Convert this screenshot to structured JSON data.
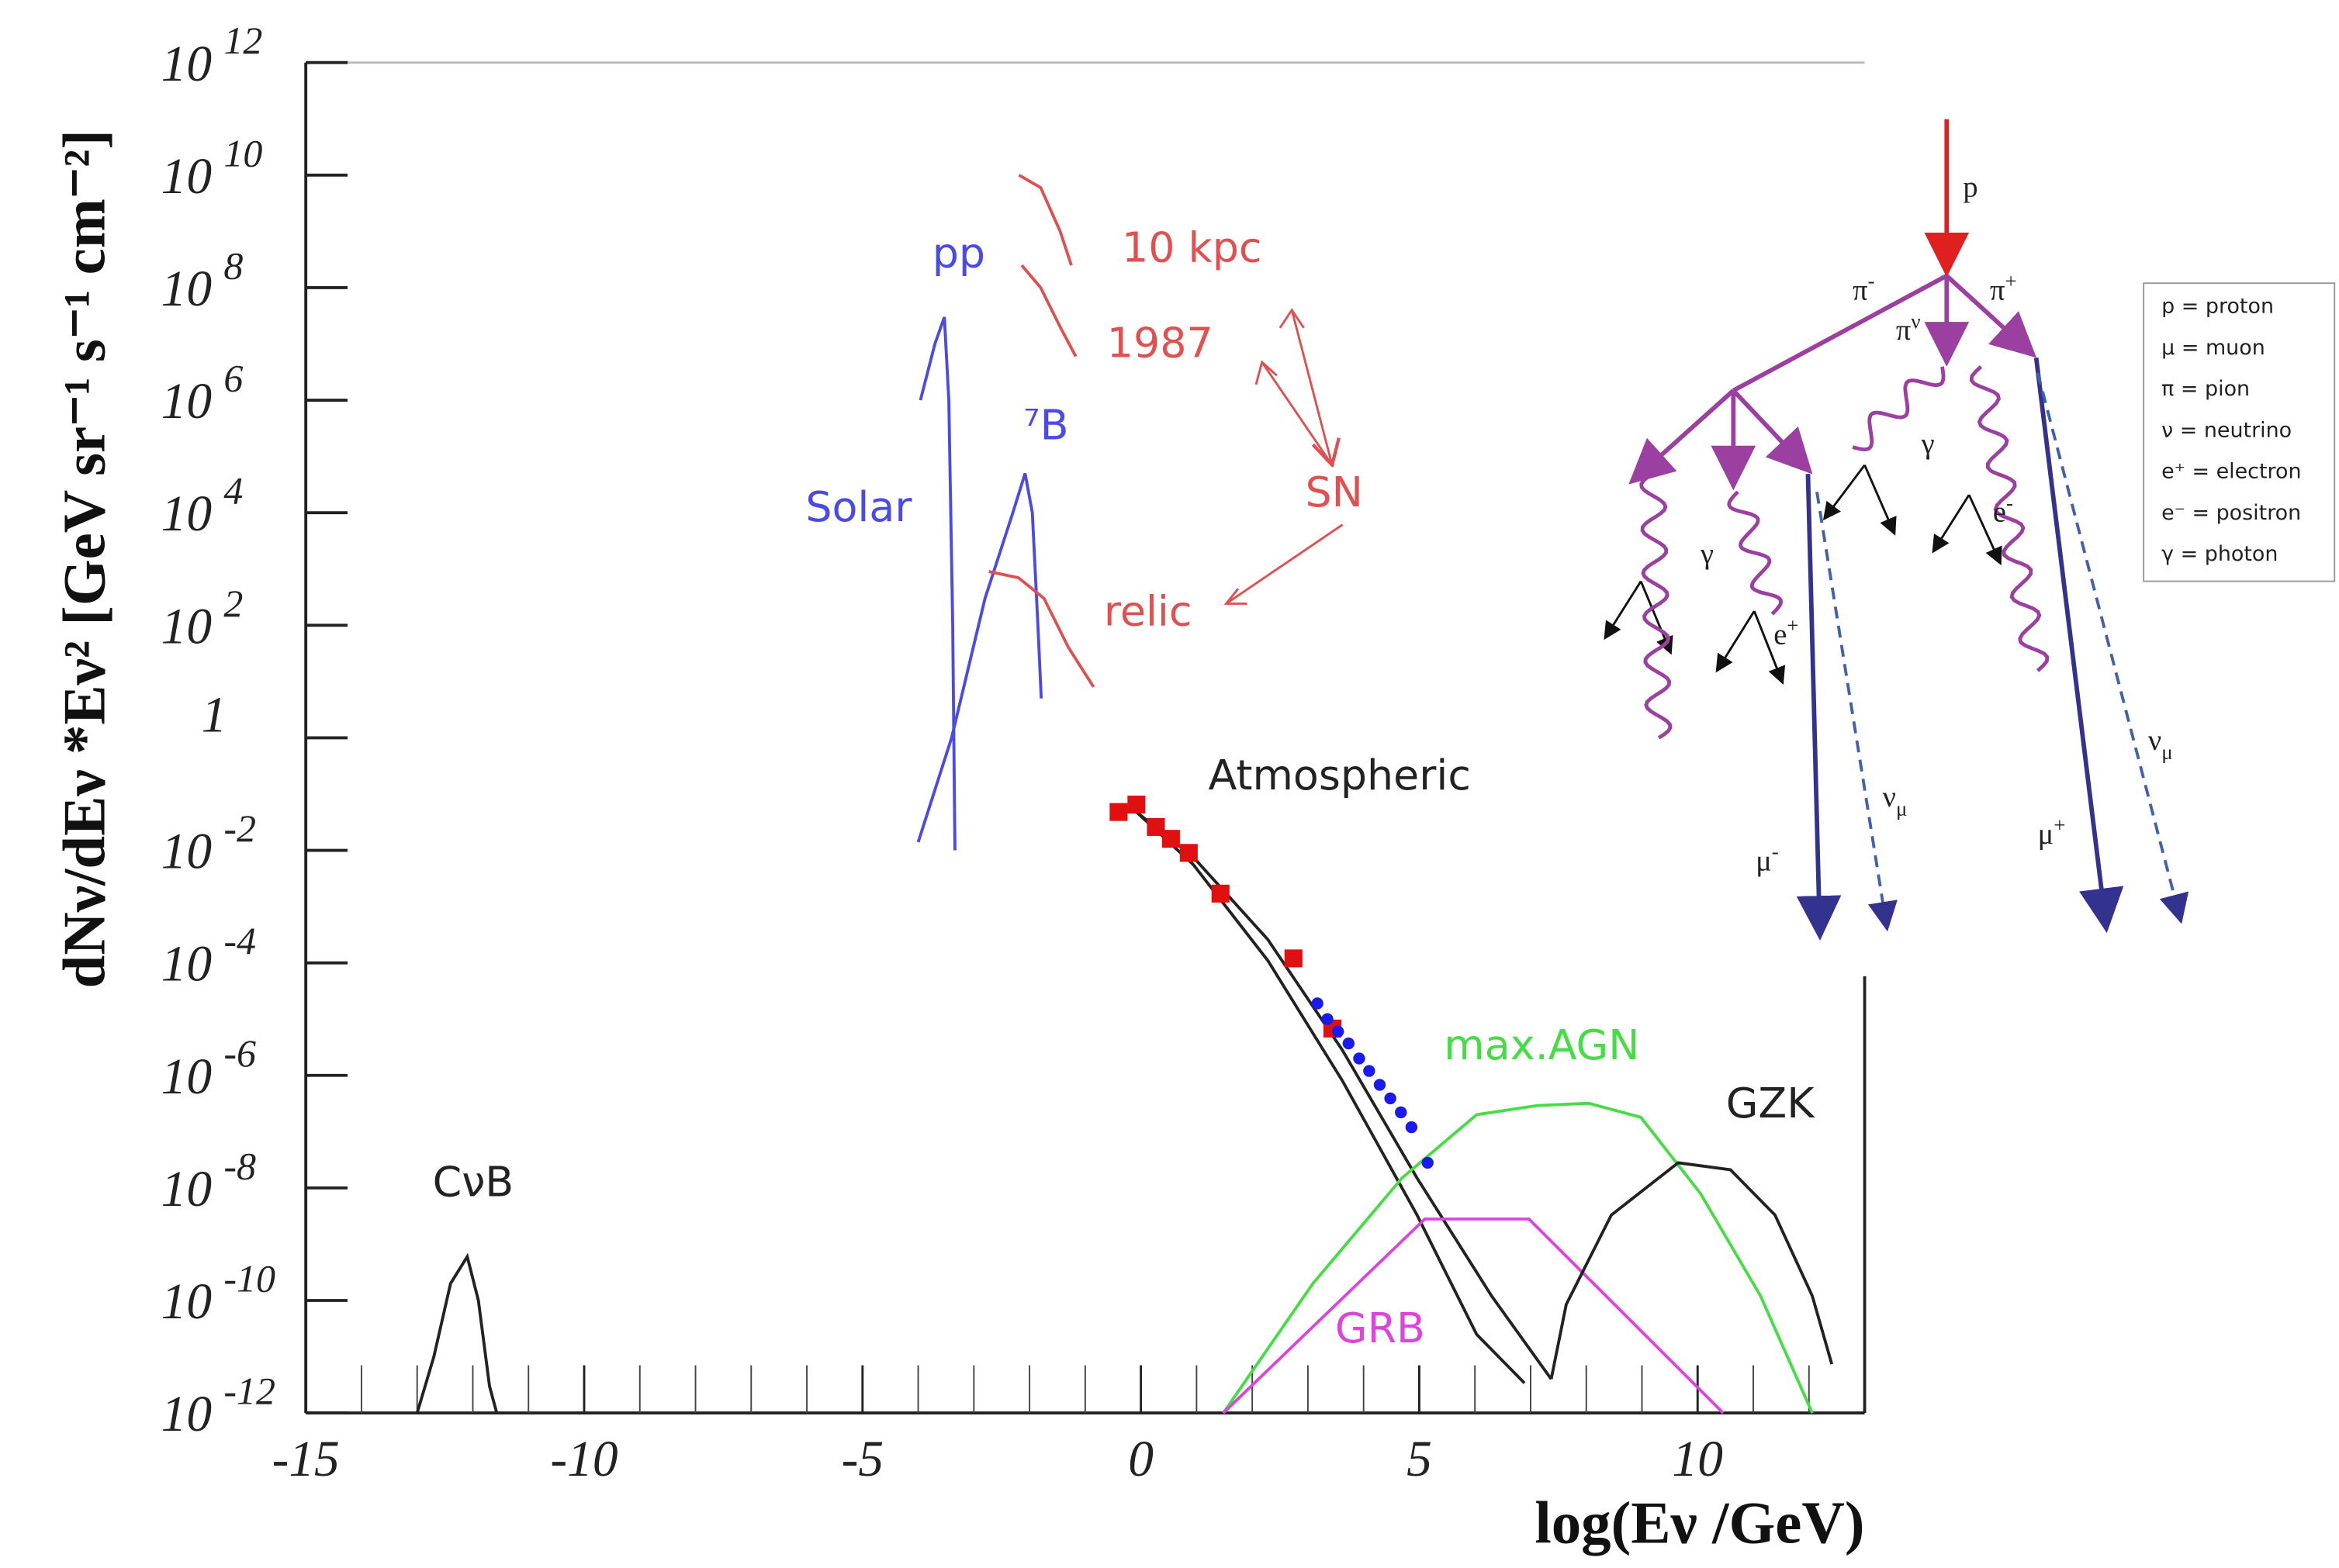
{
  "chart_data": {
    "type": "line",
    "xlabel": "log(Eν /GeV)",
    "ylabel": "dNν/dEν *Eν² [GeV sr⁻¹ s⁻¹ cm⁻²]",
    "xlim": [
      -15,
      13
    ],
    "ylim": [
      1e-12,
      1000000000000.0
    ],
    "log_y": true,
    "xticks": [
      -15,
      -10,
      -5,
      0,
      5,
      10
    ],
    "xticks_minor": [
      -14,
      -13,
      -12,
      -11,
      -9,
      -8,
      -7,
      -6,
      -4,
      -3,
      -2,
      -1,
      1,
      2,
      3,
      4,
      6,
      7,
      8,
      9,
      11,
      12
    ],
    "yticks": [
      {
        "value": 1e-12,
        "label": "10",
        "sup": "-12"
      },
      {
        "value": 1e-10,
        "label": "10",
        "sup": "-10"
      },
      {
        "value": 1e-08,
        "label": "10",
        "sup": "-8"
      },
      {
        "value": 1e-06,
        "label": "10",
        "sup": "-6"
      },
      {
        "value": 0.0001,
        "label": "10",
        "sup": "-4"
      },
      {
        "value": 0.01,
        "label": "10",
        "sup": "-2"
      },
      1,
      {
        "value": 100.0,
        "label": "10",
        "sup": "2"
      },
      {
        "value": 10000.0,
        "label": "10",
        "sup": "4"
      },
      {
        "value": 1000000.0,
        "label": "10",
        "sup": "6"
      },
      {
        "value": 100000000.0,
        "label": "10",
        "sup": "8"
      },
      {
        "value": 10000000000.0,
        "label": "10",
        "sup": "10"
      },
      {
        "value": 1000000000000.0,
        "label": "10",
        "sup": "12"
      }
    ],
    "series": [
      {
        "name": "CνB",
        "color": "#222222",
        "x": [
          -13.0,
          -12.7,
          -12.4,
          -12.1,
          -11.9,
          -11.7,
          -11.57
        ],
        "values": [
          1e-12,
          1e-11,
          2e-10,
          6e-10,
          1e-10,
          3e-12,
          1e-12
        ]
      },
      {
        "name": "pp",
        "color": "#4a4ae8",
        "x": [
          -3.96,
          -3.7,
          -3.53,
          -3.45,
          -3.38,
          -3.34
        ],
        "values": [
          1000000.0,
          10000000.0,
          30000000.0,
          1000000.0,
          100.0,
          0.01
        ]
      },
      {
        "name": "⁷B",
        "color": "#4a4ae8",
        "x": [
          -4.0,
          -3.4,
          -2.8,
          -2.3,
          -2.08,
          -1.95,
          -1.85,
          -1.79
        ],
        "values": [
          0.014,
          1,
          300.0,
          10000.0,
          50000.0,
          10000.0,
          100.0,
          5
        ]
      },
      {
        "name": "10 kpc",
        "color": "#e05050",
        "x": [
          -2.19,
          -1.8,
          -1.45,
          -1.25
        ],
        "values": [
          10000000000.0,
          6000000000.0,
          1000000000.0,
          250000000.0
        ]
      },
      {
        "name": "1987",
        "color": "#e05050",
        "x": [
          -2.14,
          -1.8,
          -1.45,
          -1.17
        ],
        "values": [
          250000000.0,
          100000000.0,
          20000000.0,
          6000000.0
        ]
      },
      {
        "name": "relic",
        "color": "#e05050",
        "x": [
          -2.73,
          -2.2,
          -1.74,
          -1.3,
          -0.85
        ],
        "values": [
          900.0,
          700.0,
          300.0,
          40.0,
          8
        ]
      },
      {
        "name": "Atmospheric",
        "color": "#222222",
        "x": [
          -0.08,
          0.94,
          2.28,
          3.62,
          4.96,
          6.3,
          7.37
        ],
        "values": [
          0.048,
          0.0076,
          0.00026,
          2.8e-06,
          1.5e-08,
          1.2e-10,
          4e-12
        ]
      },
      {
        "color": "#222222",
        "x": [
          -0.08,
          0.94,
          2.28,
          3.62,
          4.96,
          6.03,
          6.89
        ],
        "values": [
          0.048,
          0.0056,
          0.00011,
          8e-07,
          3.3e-09,
          2.5e-11,
          3.4e-12
        ]
      },
      {
        "name": "max.AGN",
        "color": "#44dd44",
        "x": [
          1.48,
          3.09,
          4.69,
          6.03,
          7.11,
          8.04,
          8.98,
          10.05,
          11.13,
          12.06
        ],
        "values": [
          1e-12,
          2e-10,
          1.5e-08,
          2e-07,
          2.9e-07,
          3.2e-07,
          1.8e-07,
          8e-09,
          1.2e-10,
          1e-12
        ]
      },
      {
        "name": "GRB",
        "color": "#dd44dd",
        "x": [
          1.48,
          5.1,
          6.97,
          10.46
        ],
        "values": [
          1e-12,
          2.8e-09,
          2.8e-09,
          1e-12
        ]
      },
      {
        "name": "GZK",
        "color": "#222222",
        "x": [
          7.37,
          7.64,
          8.45,
          9.65,
          10.59,
          11.39,
          12.06,
          12.41
        ],
        "values": [
          4e-12,
          8.5e-11,
          3.3e-09,
          2.8e-08,
          2.1e-08,
          3.3e-09,
          1.2e-10,
          7.4e-12
        ]
      },
      {
        "type": "scatter",
        "marker": "square",
        "color": "#e01010",
        "x": [
          -0.4,
          -0.08,
          0.27,
          0.54,
          0.86,
          1.43,
          2.74,
          3.44
        ],
        "values": [
          0.048,
          0.065,
          0.026,
          0.016,
          0.009,
          0.0017,
          0.00012,
          6.8e-06
        ]
      },
      {
        "type": "scatter",
        "marker": "circle",
        "color": "#1a1aee",
        "x": [
          3.17,
          3.35,
          3.54,
          3.73,
          3.92,
          4.1,
          4.29,
          4.48,
          4.67,
          4.86,
          5.15
        ],
        "values": [
          1.9e-05,
          1e-05,
          6e-06,
          3.7e-06,
          2e-06,
          1.2e-06,
          6.8e-07,
          3.9e-07,
          2.2e-07,
          1.2e-07,
          2.8e-08
        ]
      }
    ],
    "annotations": [
      {
        "text": "SN",
        "color": "#e05050"
      },
      {
        "text": "Solar",
        "color": "#4a4ae8"
      }
    ]
  },
  "diagram": {
    "labels": [
      {
        "base": "p"
      },
      {
        "base": "π",
        "sup": "-"
      },
      {
        "base": "π",
        "sup": "+"
      },
      {
        "base": "π",
        "sup": "ν"
      },
      {
        "base": "γ"
      },
      {
        "base": "e",
        "sup": "-"
      },
      {
        "base": "γ"
      },
      {
        "base": "e",
        "sup": "+"
      },
      {
        "base": "μ",
        "sup": "-"
      },
      {
        "base": "ν",
        "sub": "μ"
      },
      {
        "base": "μ",
        "sup": "+"
      },
      {
        "base": "ν",
        "sub": "μ"
      }
    ],
    "legend": [
      "p = proton",
      "μ = muon",
      "π = pion",
      "ν = neutrino",
      "e⁺ = electron",
      "e⁻ = positron",
      "γ = photon"
    ]
  }
}
